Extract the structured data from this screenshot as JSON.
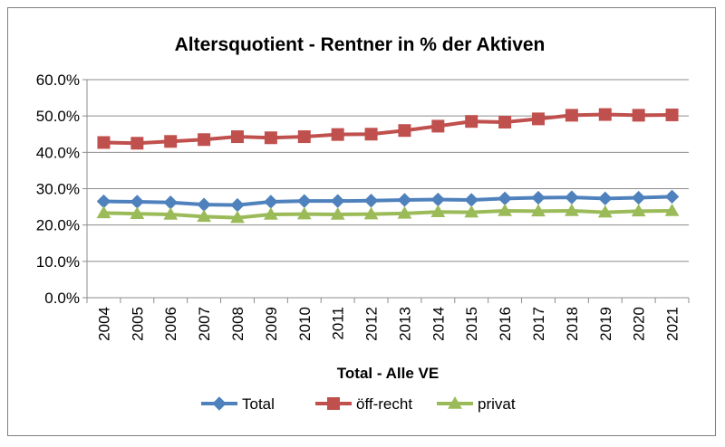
{
  "chart_data": {
    "type": "line",
    "title": "Altersquotient - Rentner in % der Aktiven",
    "xlabel": "Total - Alle VE",
    "ylabel": "",
    "ylim": [
      0,
      60
    ],
    "yticks": [
      "0.0%",
      "10.0%",
      "20.0%",
      "30.0%",
      "40.0%",
      "50.0%",
      "60.0%"
    ],
    "grid": true,
    "legend_position": "bottom",
    "categories": [
      "2004",
      "2005",
      "2006",
      "2007",
      "2008",
      "2009",
      "2010",
      "2011",
      "2012",
      "2013",
      "2014",
      "2015",
      "2016",
      "2017",
      "2018",
      "2019",
      "2020",
      "2021"
    ],
    "series": [
      {
        "name": "Total",
        "color": "#4f81bd",
        "marker": "diamond",
        "values": [
          26.5,
          26.4,
          26.2,
          25.6,
          25.5,
          26.4,
          26.6,
          26.6,
          26.7,
          26.9,
          27.0,
          26.9,
          27.3,
          27.5,
          27.6,
          27.3,
          27.5,
          27.8
        ]
      },
      {
        "name": "öff-recht",
        "color": "#c0504d",
        "marker": "square",
        "values": [
          42.7,
          42.5,
          43.0,
          43.5,
          44.3,
          44.0,
          44.3,
          44.9,
          45.0,
          46.0,
          47.2,
          48.5,
          48.3,
          49.2,
          50.2,
          50.4,
          50.2,
          50.3
        ]
      },
      {
        "name": "privat",
        "color": "#9bbb59",
        "marker": "triangle",
        "values": [
          23.3,
          23.1,
          22.9,
          22.3,
          22.0,
          22.9,
          23.0,
          22.9,
          23.0,
          23.2,
          23.6,
          23.5,
          23.9,
          23.8,
          23.9,
          23.5,
          23.8,
          23.9
        ]
      }
    ]
  }
}
